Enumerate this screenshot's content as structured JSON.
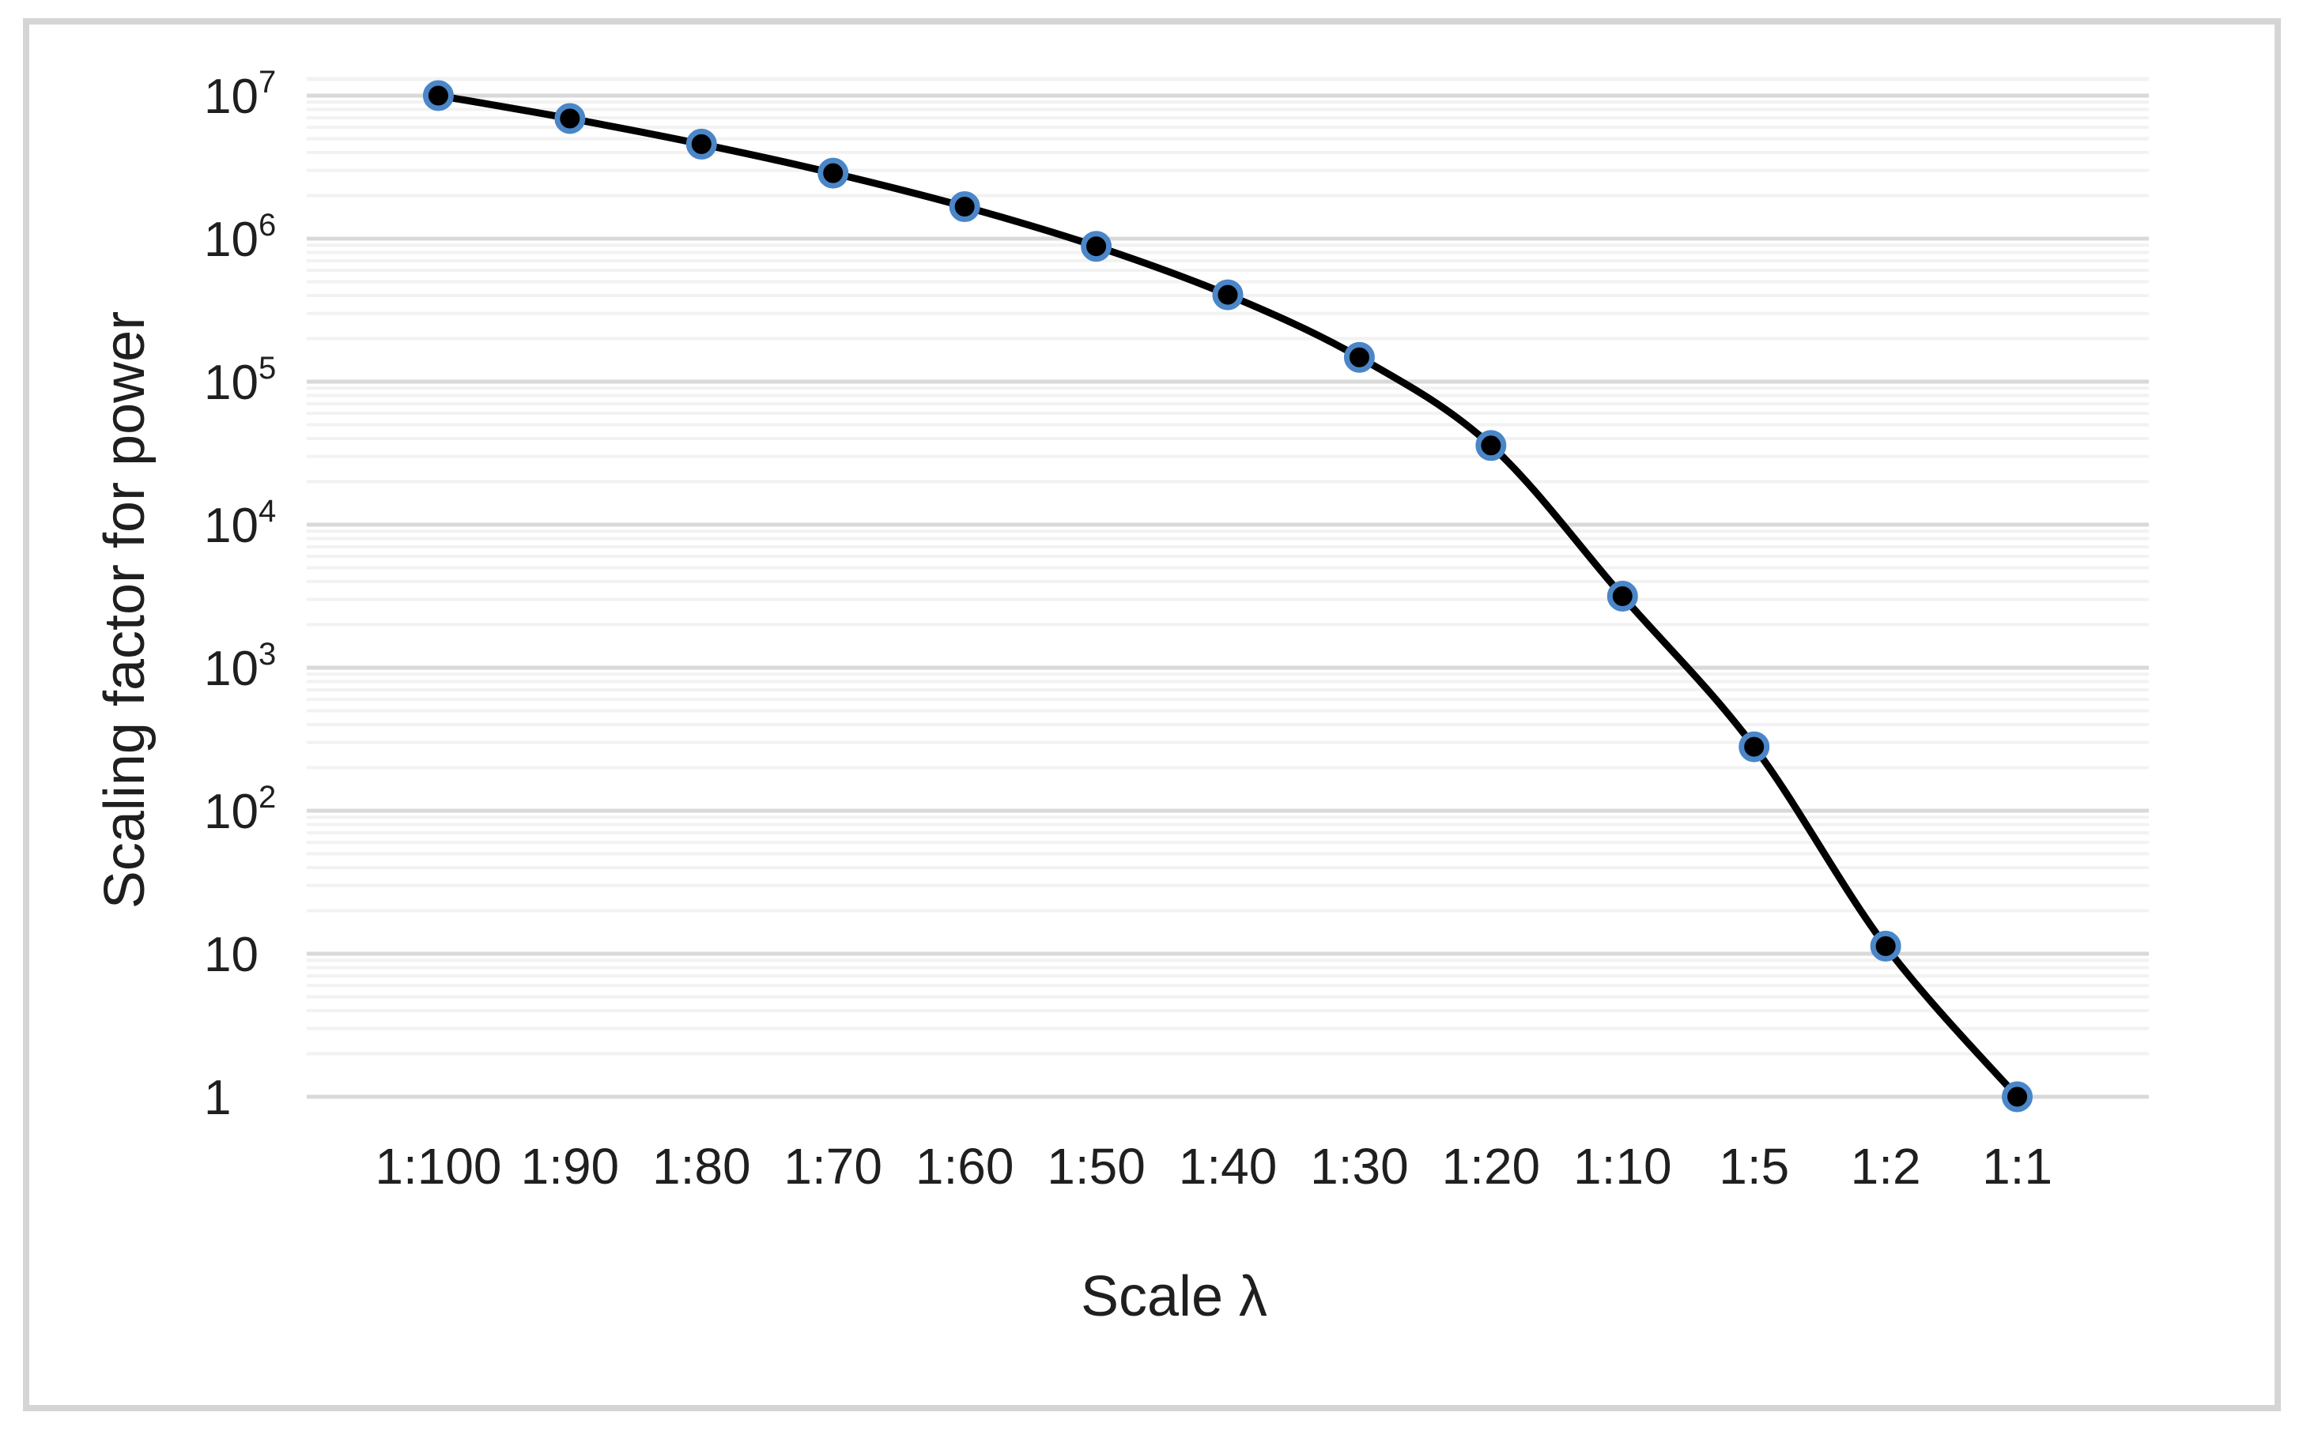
{
  "chart_data": {
    "type": "line",
    "title": "",
    "xlabel": "Scale λ",
    "ylabel": "Scaling factor for power",
    "categories": [
      "1:100",
      "1:90",
      "1:80",
      "1:70",
      "1:60",
      "1:50",
      "1:40",
      "1:30",
      "1:20",
      "1:10",
      "1:5",
      "1:2",
      "1:1"
    ],
    "scale_lambda": [
      100,
      90,
      80,
      70,
      60,
      50,
      40,
      30,
      20,
      10,
      5,
      2,
      1
    ],
    "values": [
      10000000,
      6916000,
      4579000,
      2870000,
      1673000,
      883900,
      404800,
      147900,
      35780,
      3162,
      280,
      11.3,
      1
    ],
    "series_name": "Scaling factor for power",
    "y_axis": {
      "scale": "log",
      "min": 1,
      "max": 10000000,
      "tick_labels": [
        {
          "base": "10",
          "exp": "7",
          "value": 10000000
        },
        {
          "base": "10",
          "exp": "6",
          "value": 1000000
        },
        {
          "base": "10",
          "exp": "5",
          "value": 100000
        },
        {
          "base": "10",
          "exp": "4",
          "value": 10000
        },
        {
          "base": "10",
          "exp": "3",
          "value": 1000
        },
        {
          "base": "10",
          "exp": "2",
          "value": 100
        },
        {
          "base": "10",
          "exp": "",
          "value": 10
        },
        {
          "base": "1",
          "exp": "",
          "value": 1
        }
      ]
    },
    "x_axis": {
      "type": "category"
    },
    "grid": {
      "major": true,
      "minor": true
    },
    "legend": {
      "visible": false
    },
    "marker_style": "filled circle",
    "colors": {
      "line": "#000000",
      "marker_fill": "#000000",
      "marker_ring": "#4a86c8",
      "gridline_major": "#d9d9d9",
      "gridline_minor": "#f2f2f2",
      "figure_border": "#d5d5d5",
      "text": "#1f1f1f",
      "background": "#ffffff"
    }
  }
}
